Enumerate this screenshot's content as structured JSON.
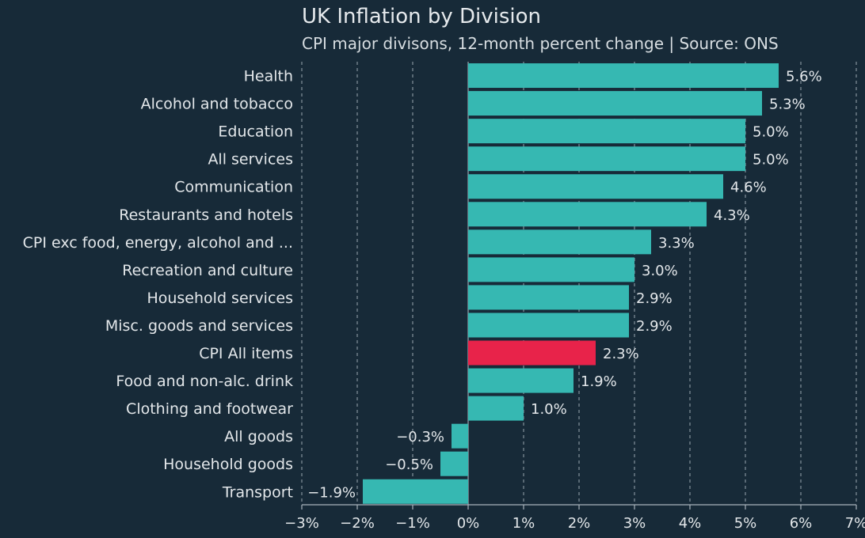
{
  "chart_data": {
    "type": "bar",
    "orientation": "horizontal",
    "title": "UK Inflation by Division",
    "subtitle": "CPI major divisons, 12-month percent change | Source: ONS",
    "categories": [
      "Health",
      "Alcohol and tobacco",
      "Education",
      "All services",
      "Communication",
      "Restaurants and hotels",
      "CPI exc food, energy, alcohol and ...",
      "Recreation and culture",
      "Household services",
      "Misc. goods and services",
      "CPI All items",
      "Food and non-alc. drink",
      "Clothing and footwear",
      "All goods",
      "Household goods",
      "Transport"
    ],
    "values": [
      5.6,
      5.3,
      5.0,
      5.0,
      4.6,
      4.3,
      3.3,
      3.0,
      2.9,
      2.9,
      2.3,
      1.9,
      1.0,
      -0.3,
      -0.5,
      -1.9
    ],
    "value_labels": [
      "5.6%",
      "5.3%",
      "5.0%",
      "5.0%",
      "4.6%",
      "4.3%",
      "3.3%",
      "3.0%",
      "2.9%",
      "2.9%",
      "2.3%",
      "1.9%",
      "1.0%",
      "−0.3%",
      "−0.5%",
      "−1.9%"
    ],
    "highlight_category": "CPI All items",
    "xlim": [
      -3,
      7
    ],
    "x_ticks": [
      -3,
      -2,
      -1,
      0,
      1,
      2,
      3,
      4,
      5,
      6,
      7
    ],
    "x_tick_labels": [
      "−3%",
      "−2%",
      "−1%",
      "0%",
      "1%",
      "2%",
      "3%",
      "4%",
      "5%",
      "6%",
      "7%"
    ],
    "grid": "vertical dashed",
    "legend": "none",
    "colors": {
      "background": "#172a38",
      "bar": "#36b8b2",
      "highlight": "#e8234a",
      "grid": "#a9b4bc",
      "text": "#e3e7ea"
    }
  }
}
